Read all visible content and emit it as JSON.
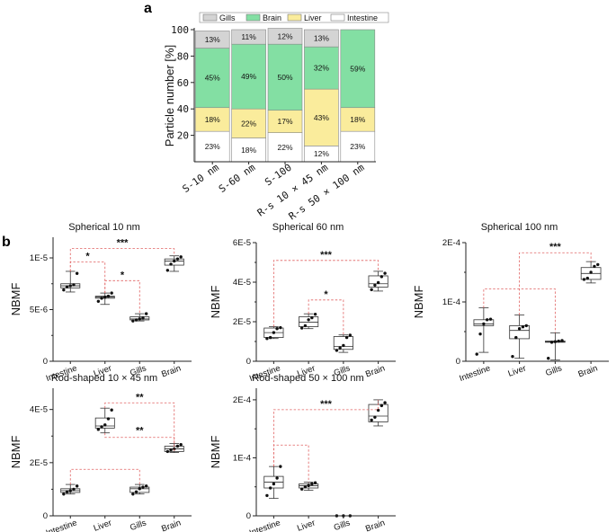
{
  "panel_labels": {
    "a": "a",
    "b": "b"
  },
  "colors": {
    "Gills": "#d4d4d4",
    "Brain": "#83dfa3",
    "Liver": "#faec9c",
    "Intestine": "#ffffff",
    "sig_line": "#e06060"
  },
  "chart_data": [
    {
      "id": "a",
      "type": "bar",
      "stacked": true,
      "categories": [
        "S-10 nm",
        "S-60 nm",
        "S-100",
        "R-s 10 × 45 nm",
        "R-s 50 × 100 nm"
      ],
      "ylabel": "Particle number [%]",
      "ylim": [
        0,
        100
      ],
      "yticks": [
        20,
        40,
        60,
        80,
        100
      ],
      "legend": [
        "Gills",
        "Brain",
        "Liver",
        "Intestine"
      ],
      "series": [
        {
          "name": "Intestine",
          "values": [
            23,
            18,
            22,
            12,
            23
          ],
          "labels": [
            "23%",
            "18%",
            "22%",
            "12%",
            "23%"
          ]
        },
        {
          "name": "Liver",
          "values": [
            18,
            22,
            17,
            43,
            18
          ],
          "labels": [
            "18%",
            "22%",
            "17%",
            "43%",
            "18%"
          ]
        },
        {
          "name": "Brain",
          "values": [
            45,
            49,
            50,
            32,
            59
          ],
          "labels": [
            "45%",
            "49%",
            "50%",
            "32%",
            "59%"
          ]
        },
        {
          "name": "Gills",
          "values": [
            13,
            11,
            12,
            13,
            0
          ],
          "labels": [
            "13%",
            "11%",
            "12%",
            "13%",
            ""
          ]
        }
      ]
    },
    {
      "id": "b1",
      "type": "box",
      "title": "Spherical 10 nm",
      "ylabel": "NBMF",
      "categories": [
        "Intestine",
        "Liver",
        "Gills",
        "Brain"
      ],
      "ylim": [
        0,
        1.2e-05
      ],
      "yticks": [
        0,
        5e-06,
        1e-05
      ],
      "yticklabels": [
        "0",
        "5E-6",
        "1E-5"
      ],
      "minor_ticks": [
        2.5e-06,
        7.5e-06
      ],
      "boxes": [
        {
          "wlo": 6.7e-06,
          "q1": 7.1e-06,
          "med": 7.3e-06,
          "q3": 7.5e-06,
          "whi": 8.7e-06,
          "points": [
            6.9e-06,
            7.2e-06,
            7.3e-06,
            7.4e-06,
            8.5e-06
          ]
        },
        {
          "wlo": 5.5e-06,
          "q1": 6.1e-06,
          "med": 6.2e-06,
          "q3": 6.3e-06,
          "whi": 6.6e-06,
          "points": [
            5.8e-06,
            6.1e-06,
            6.2e-06,
            6.3e-06,
            6.6e-06
          ]
        },
        {
          "wlo": 3.9e-06,
          "q1": 4e-06,
          "med": 4.1e-06,
          "q3": 4.3e-06,
          "whi": 4.6e-06,
          "points": [
            3.9e-06,
            4e-06,
            4.1e-06,
            4.2e-06,
            4.6e-06
          ]
        },
        {
          "wlo": 8.7e-06,
          "q1": 9.3e-06,
          "med": 9.7e-06,
          "q3": 9.9e-06,
          "whi": 1.02e-05,
          "points": [
            8.8e-06,
            9.4e-06,
            9.7e-06,
            9.9e-06,
            1.01e-05
          ]
        }
      ],
      "sig": [
        {
          "from": 0,
          "to": 3,
          "label": "***",
          "level": 1.09e-05
        },
        {
          "from": 0,
          "to": 1,
          "label": "*",
          "level": 9.6e-06
        },
        {
          "from": 1,
          "to": 2,
          "label": "*",
          "level": 7.8e-06
        }
      ]
    },
    {
      "id": "b2",
      "type": "box",
      "title": "Spherical 60 nm",
      "ylabel": "NBMF",
      "categories": [
        "Intestine",
        "Liver",
        "Gills",
        "Brain"
      ],
      "ylim": [
        0,
        6e-05
      ],
      "yticks": [
        0,
        2e-05,
        4e-05,
        6e-05
      ],
      "yticklabels": [
        "0",
        "2E-5",
        "4E-5",
        "6E-5"
      ],
      "minor_ticks": [
        1e-05,
        3e-05,
        5e-05
      ],
      "boxes": [
        {
          "wlo": 1.15e-05,
          "q1": 1.2e-05,
          "med": 1.45e-05,
          "q3": 1.68e-05,
          "whi": 1.75e-05,
          "points": [
            1.15e-05,
            1.2e-05,
            1.45e-05,
            1.65e-05,
            1.7e-05
          ]
        },
        {
          "wlo": 1.65e-05,
          "q1": 1.75e-05,
          "med": 1.98e-05,
          "q3": 2.25e-05,
          "whi": 2.4e-05,
          "points": [
            1.68e-05,
            1.8e-05,
            2.1e-05,
            2.2e-05,
            2.38e-05
          ]
        },
        {
          "wlo": 4.5e-06,
          "q1": 6e-06,
          "med": 7.5e-06,
          "q3": 1.25e-05,
          "whi": 1.33e-05,
          "points": [
            5.5e-06,
            6.8e-06,
            8e-06,
            1.2e-05,
            1.32e-05
          ]
        },
        {
          "wlo": 3.55e-05,
          "q1": 3.75e-05,
          "med": 3.92e-05,
          "q3": 4.32e-05,
          "whi": 4.55e-05,
          "points": [
            3.62e-05,
            3.85e-05,
            3.98e-05,
            4.28e-05,
            4.45e-05
          ]
        }
      ],
      "sig": [
        {
          "from": 0,
          "to": 3,
          "label": "***",
          "level": 5.1e-05
        },
        {
          "from": 1,
          "to": 2,
          "label": "*",
          "level": 3.1e-05
        }
      ]
    },
    {
      "id": "b3",
      "type": "box",
      "title": "Spherical 100 nm",
      "ylabel": "NBMF",
      "categories": [
        "Intestine",
        "Liver",
        "Gills",
        "Brain"
      ],
      "ylim": [
        0,
        0.0002
      ],
      "yticks": [
        0,
        0.0001,
        0.0002
      ],
      "yticklabels": [
        "0",
        "1E-4",
        "2E-4"
      ],
      "minor_ticks": [
        5e-05,
        0.00015
      ],
      "boxes": [
        {
          "wlo": 1.5e-05,
          "q1": 6e-05,
          "med": 6.3e-05,
          "q3": 7e-05,
          "whi": 9e-05,
          "points": [
            1.2e-05,
            4.6e-05,
            6.3e-05,
            7e-05,
            7.1e-05
          ]
        },
        {
          "wlo": 5e-06,
          "q1": 3.8e-05,
          "med": 5.2e-05,
          "q3": 6e-05,
          "whi": 7.8e-05,
          "points": [
            8e-06,
            4e-05,
            5.5e-05,
            5.8e-05,
            6e-05
          ]
        },
        {
          "wlo": 2e-06,
          "q1": 3.2e-05,
          "med": 3.3e-05,
          "q3": 3.4e-05,
          "whi": 4.8e-05,
          "points": [
            5e-06,
            3.2e-05,
            3.3e-05,
            3.4e-05,
            3.5e-05
          ]
        },
        {
          "wlo": 0.000132,
          "q1": 0.000138,
          "med": 0.000148,
          "q3": 0.000158,
          "whi": 0.000168,
          "points": [
            0.000138,
            0.00014,
            0.00015,
            0.00016,
            0.000163
          ]
        }
      ],
      "sig": [
        {
          "from": 0,
          "to": 2,
          "label": "",
          "level": 0.000122
        },
        {
          "from": 1,
          "to": 3,
          "label": "***",
          "level": 0.000183
        }
      ]
    },
    {
      "id": "b4",
      "type": "box",
      "title": "Rod-shaped 10 × 45 nm",
      "ylabel": "NBMF",
      "categories": [
        "Intestine",
        "Liver",
        "Gills",
        "Brain"
      ],
      "ylim": [
        0,
        4.8e-05
      ],
      "yticks": [
        0,
        2e-05,
        4e-05
      ],
      "yticklabels": [
        "0",
        "2E-5",
        "4E-5"
      ],
      "minor_ticks": [
        1e-05,
        3e-05
      ],
      "boxes": [
        {
          "wlo": 8.2e-06,
          "q1": 8.8e-06,
          "med": 9.5e-06,
          "q3": 1.02e-05,
          "whi": 1.18e-05,
          "points": [
            8.2e-06,
            9e-06,
            9.5e-06,
            1e-05,
            1.12e-05
          ]
        },
        {
          "wlo": 3.12e-05,
          "q1": 3.3e-05,
          "med": 3.38e-05,
          "q3": 3.68e-05,
          "whi": 4.05e-05,
          "points": [
            3.25e-05,
            3.35e-05,
            3.42e-05,
            3.65e-05,
            3.98e-05
          ]
        },
        {
          "wlo": 8.2e-06,
          "q1": 8.8e-06,
          "med": 1.02e-05,
          "q3": 1.08e-05,
          "whi": 1.18e-05,
          "points": [
            8.2e-06,
            9e-06,
            1.02e-05,
            1.08e-05,
            1.12e-05
          ]
        },
        {
          "wlo": 2.38e-05,
          "q1": 2.42e-05,
          "med": 2.52e-05,
          "q3": 2.62e-05,
          "whi": 2.72e-05,
          "points": [
            2.42e-05,
            2.48e-05,
            2.52e-05,
            2.62e-05,
            2.68e-05
          ]
        }
      ],
      "sig": [
        {
          "from": 0,
          "to": 2,
          "label": "",
          "level": 1.75e-05
        },
        {
          "from": 1,
          "to": 3,
          "label": "**",
          "level": 4.25e-05
        },
        {
          "from": 1,
          "to": 3,
          "label": "**",
          "level": 2.95e-05,
          "below": true
        }
      ]
    },
    {
      "id": "b5",
      "type": "box",
      "title": "Rod-shaped 50 × 100 nm",
      "ylabel": "NBMF",
      "categories": [
        "Intestine",
        "Liver",
        "Gills",
        "Brain"
      ],
      "ylim": [
        0,
        0.00022
      ],
      "yticks": [
        0,
        0.0001,
        0.0002
      ],
      "yticklabels": [
        "0",
        "1E-4",
        "2E-4"
      ],
      "minor_ticks": [
        5e-05,
        0.00015
      ],
      "boxes": [
        {
          "wlo": 3e-05,
          "q1": 4.8e-05,
          "med": 5.8e-05,
          "q3": 6.8e-05,
          "whi": 8.5e-05,
          "points": [
            3.5e-05,
            4.8e-05,
            5.5e-05,
            6.5e-05,
            8.5e-05
          ]
        },
        {
          "wlo": 4.4e-05,
          "q1": 4.8e-05,
          "med": 5.2e-05,
          "q3": 5.5e-05,
          "whi": 5.8e-05,
          "points": [
            4.6e-05,
            5e-05,
            5.2e-05,
            5.5e-05,
            5.7e-05
          ]
        },
        {
          "wlo": 0,
          "q1": 0,
          "med": 0,
          "q3": 0,
          "whi": 0,
          "points": [
            0,
            0,
            0
          ],
          "no_box": true
        },
        {
          "wlo": 0.000155,
          "q1": 0.000162,
          "med": 0.000172,
          "q3": 0.000192,
          "whi": 0.0002,
          "points": [
            0.000165,
            0.00017,
            0.000182,
            0.00019,
            0.000195
          ]
        }
      ],
      "sig": [
        {
          "from": 0,
          "to": 1,
          "label": "",
          "level": 0.000122
        },
        {
          "from": 0,
          "to": 3,
          "label": "***",
          "level": 0.000183
        }
      ]
    }
  ]
}
